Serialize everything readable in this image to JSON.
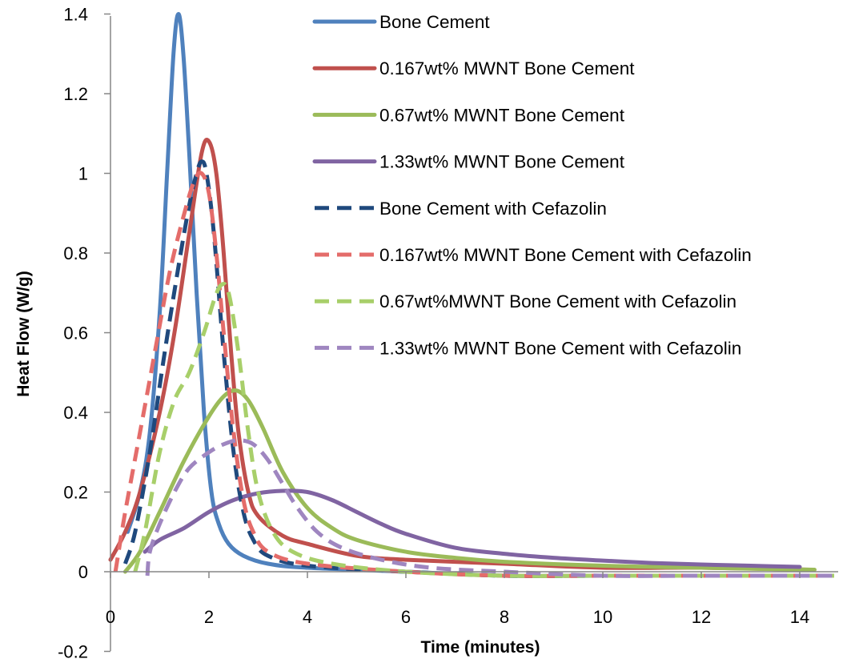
{
  "chart_data": {
    "type": "line",
    "title": "",
    "xlabel": "Time (minutes)",
    "ylabel": "Heat Flow (W/g)",
    "xlim": [
      0,
      15
    ],
    "ylim": [
      -0.2,
      1.4
    ],
    "x_ticks": [
      "0",
      "2",
      "4",
      "6",
      "8",
      "10",
      "12",
      "14"
    ],
    "y_ticks": [
      "-0.2",
      "0",
      "0.2",
      "0.4",
      "0.6",
      "0.8",
      "1",
      "1.2",
      "1.4"
    ],
    "grid": false,
    "legend_position": "top-right",
    "series": [
      {
        "name": "Bone Cement",
        "color": "#4F81BD",
        "dash": "solid",
        "points": [
          [
            0.35,
            0.1
          ],
          [
            0.6,
            0.2
          ],
          [
            0.8,
            0.35
          ],
          [
            1.0,
            0.65
          ],
          [
            1.15,
            1.0
          ],
          [
            1.28,
            1.3
          ],
          [
            1.38,
            1.4
          ],
          [
            1.48,
            1.3
          ],
          [
            1.6,
            1.05
          ],
          [
            1.75,
            0.7
          ],
          [
            1.9,
            0.4
          ],
          [
            2.05,
            0.2
          ],
          [
            2.2,
            0.12
          ],
          [
            2.4,
            0.07
          ],
          [
            2.7,
            0.04
          ],
          [
            3.2,
            0.02
          ],
          [
            4.0,
            0.01
          ],
          [
            6.0,
            0.0
          ],
          [
            8.0,
            -0.01
          ],
          [
            10.0,
            -0.01
          ],
          [
            12.0,
            -0.01
          ],
          [
            14.0,
            -0.01
          ]
        ]
      },
      {
        "name": "0.167wt% MWNT Bone Cement",
        "color": "#C0504D",
        "dash": "solid",
        "points": [
          [
            0.0,
            0.03
          ],
          [
            0.3,
            0.1
          ],
          [
            0.6,
            0.2
          ],
          [
            1.0,
            0.4
          ],
          [
            1.3,
            0.6
          ],
          [
            1.6,
            0.85
          ],
          [
            1.85,
            1.05
          ],
          [
            2.0,
            1.08
          ],
          [
            2.15,
            1.0
          ],
          [
            2.3,
            0.8
          ],
          [
            2.45,
            0.55
          ],
          [
            2.6,
            0.35
          ],
          [
            2.8,
            0.2
          ],
          [
            3.0,
            0.14
          ],
          [
            3.5,
            0.09
          ],
          [
            4.0,
            0.07
          ],
          [
            5.0,
            0.04
          ],
          [
            6.0,
            0.03
          ],
          [
            8.0,
            0.02
          ],
          [
            10.0,
            0.01
          ],
          [
            12.0,
            0.01
          ],
          [
            14.2,
            0.005
          ]
        ]
      },
      {
        "name": "0.67wt% MWNT Bone Cement",
        "color": "#9BBB59",
        "dash": "solid",
        "points": [
          [
            0.3,
            0.0
          ],
          [
            0.6,
            0.05
          ],
          [
            1.0,
            0.15
          ],
          [
            1.5,
            0.28
          ],
          [
            2.0,
            0.39
          ],
          [
            2.3,
            0.44
          ],
          [
            2.55,
            0.455
          ],
          [
            2.8,
            0.43
          ],
          [
            3.1,
            0.36
          ],
          [
            3.5,
            0.25
          ],
          [
            4.0,
            0.16
          ],
          [
            4.5,
            0.11
          ],
          [
            5.0,
            0.08
          ],
          [
            6.0,
            0.05
          ],
          [
            7.0,
            0.035
          ],
          [
            8.0,
            0.025
          ],
          [
            10.0,
            0.015
          ],
          [
            12.0,
            0.01
          ],
          [
            14.3,
            0.005
          ]
        ]
      },
      {
        "name": "1.33wt% MWNT Bone Cement",
        "color": "#8064A2",
        "dash": "solid",
        "points": [
          [
            0.7,
            0.05
          ],
          [
            1.0,
            0.08
          ],
          [
            1.5,
            0.11
          ],
          [
            2.0,
            0.15
          ],
          [
            2.5,
            0.18
          ],
          [
            3.0,
            0.197
          ],
          [
            3.5,
            0.203
          ],
          [
            4.0,
            0.2
          ],
          [
            4.5,
            0.18
          ],
          [
            5.0,
            0.15
          ],
          [
            5.5,
            0.12
          ],
          [
            6.0,
            0.095
          ],
          [
            7.0,
            0.06
          ],
          [
            8.0,
            0.045
          ],
          [
            9.0,
            0.035
          ],
          [
            10.0,
            0.028
          ],
          [
            11.0,
            0.022
          ],
          [
            12.0,
            0.018
          ],
          [
            13.0,
            0.015
          ],
          [
            14.0,
            0.012
          ]
        ]
      },
      {
        "name": "Bone Cement with Cefazolin",
        "color": "#1F497D",
        "dash": "dashed",
        "points": [
          [
            0.3,
            0.02
          ],
          [
            0.5,
            0.1
          ],
          [
            0.8,
            0.3
          ],
          [
            1.1,
            0.55
          ],
          [
            1.4,
            0.78
          ],
          [
            1.6,
            0.92
          ],
          [
            1.75,
            1.0
          ],
          [
            1.85,
            1.03
          ],
          [
            1.95,
            1.0
          ],
          [
            2.1,
            0.85
          ],
          [
            2.3,
            0.55
          ],
          [
            2.5,
            0.3
          ],
          [
            2.7,
            0.15
          ],
          [
            2.9,
            0.08
          ],
          [
            3.2,
            0.04
          ],
          [
            4.0,
            0.015
          ],
          [
            6.0,
            0.0
          ],
          [
            8.0,
            -0.01
          ],
          [
            10.0,
            -0.01
          ],
          [
            12.0,
            -0.01
          ],
          [
            14.7,
            -0.01
          ]
        ]
      },
      {
        "name": "0.167wt% MWNT Bone Cement with Cefazolin",
        "color": "#E46C6A",
        "dash": "dashed",
        "points": [
          [
            0.1,
            0.0
          ],
          [
            0.3,
            0.15
          ],
          [
            0.6,
            0.35
          ],
          [
            0.9,
            0.55
          ],
          [
            1.2,
            0.75
          ],
          [
            1.5,
            0.9
          ],
          [
            1.7,
            0.98
          ],
          [
            1.85,
            1.0
          ],
          [
            2.0,
            0.95
          ],
          [
            2.15,
            0.8
          ],
          [
            2.3,
            0.6
          ],
          [
            2.5,
            0.35
          ],
          [
            2.7,
            0.18
          ],
          [
            2.9,
            0.1
          ],
          [
            3.2,
            0.05
          ],
          [
            4.0,
            0.02
          ],
          [
            6.0,
            0.0
          ],
          [
            8.0,
            -0.01
          ],
          [
            10.0,
            -0.01
          ],
          [
            12.0,
            -0.01
          ],
          [
            14.7,
            -0.01
          ]
        ]
      },
      {
        "name": "0.67wt%MWNT Bone Cement with Cefazolin",
        "color": "#A8CF6A",
        "dash": "dashed",
        "points": [
          [
            0.5,
            0.0
          ],
          [
            0.7,
            0.1
          ],
          [
            1.0,
            0.3
          ],
          [
            1.3,
            0.43
          ],
          [
            1.6,
            0.5
          ],
          [
            1.9,
            0.6
          ],
          [
            2.1,
            0.68
          ],
          [
            2.25,
            0.72
          ],
          [
            2.4,
            0.7
          ],
          [
            2.6,
            0.55
          ],
          [
            2.8,
            0.35
          ],
          [
            3.0,
            0.2
          ],
          [
            3.3,
            0.1
          ],
          [
            3.7,
            0.05
          ],
          [
            4.5,
            0.02
          ],
          [
            6.0,
            0.0
          ],
          [
            8.0,
            -0.01
          ],
          [
            10.0,
            -0.01
          ],
          [
            12.0,
            -0.01
          ],
          [
            14.7,
            -0.01
          ]
        ]
      },
      {
        "name": "1.33wt% MWNT Bone Cement with Cefazolin",
        "color": "#9F86C0",
        "dash": "dashed",
        "points": [
          [
            0.75,
            -0.01
          ],
          [
            0.8,
            0.05
          ],
          [
            1.0,
            0.12
          ],
          [
            1.3,
            0.2
          ],
          [
            1.6,
            0.26
          ],
          [
            2.0,
            0.3
          ],
          [
            2.3,
            0.32
          ],
          [
            2.6,
            0.33
          ],
          [
            2.9,
            0.32
          ],
          [
            3.2,
            0.28
          ],
          [
            3.5,
            0.22
          ],
          [
            3.8,
            0.16
          ],
          [
            4.2,
            0.1
          ],
          [
            4.7,
            0.06
          ],
          [
            5.5,
            0.03
          ],
          [
            6.5,
            0.01
          ],
          [
            8.0,
            0.0
          ],
          [
            10.0,
            -0.01
          ],
          [
            12.0,
            -0.01
          ],
          [
            14.8,
            -0.01
          ]
        ]
      }
    ]
  }
}
